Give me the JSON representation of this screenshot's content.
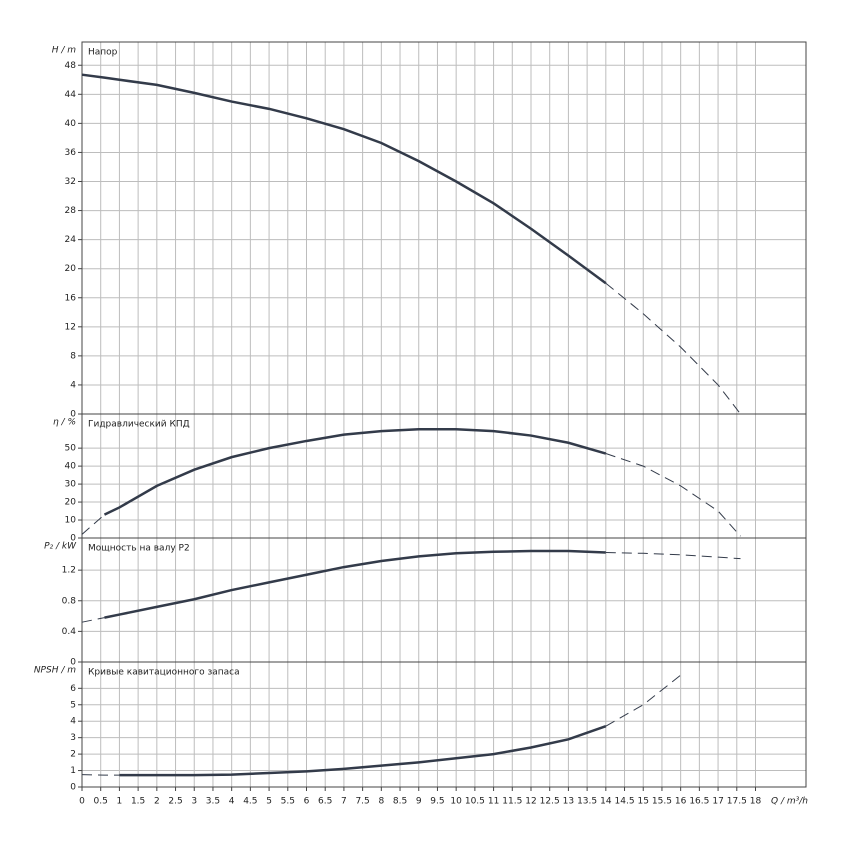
{
  "chart_data": [
    {
      "type": "line",
      "title": "Напор",
      "ylabel": "H / m",
      "x": [
        0,
        0.6,
        1,
        2,
        3,
        4,
        5,
        6,
        7,
        8,
        9,
        10,
        11,
        12,
        13,
        14,
        15,
        16,
        17,
        17.6
      ],
      "xlim": [
        0,
        19.35
      ],
      "ylim": [
        0,
        51.2
      ],
      "yticks": [
        0,
        4,
        8,
        12,
        16,
        20,
        24,
        28,
        32,
        36,
        40,
        44,
        48
      ],
      "grid": true,
      "series": [
        {
          "style": "solid",
          "color": "#333b4a",
          "values": [
            46.7,
            46.3,
            46.0,
            45.3,
            44.2,
            43.0,
            42.0,
            40.7,
            39.2,
            37.3,
            34.8,
            32.0,
            29.0,
            25.5,
            21.8,
            18.0,
            null,
            null,
            null,
            null
          ]
        },
        {
          "style": "dashed",
          "color": "#333b4a",
          "values": [
            null,
            null,
            null,
            null,
            null,
            null,
            null,
            null,
            null,
            null,
            null,
            null,
            null,
            null,
            null,
            18.0,
            13.8,
            9.2,
            4.0,
            0
          ]
        }
      ]
    },
    {
      "type": "line",
      "title": "Гидравлический КПД",
      "ylabel": "η / %",
      "x": [
        0,
        0.6,
        1,
        2,
        3,
        4,
        5,
        6,
        7,
        8,
        9,
        10,
        11,
        12,
        13,
        14,
        15,
        16,
        17,
        17.6
      ],
      "xlim": [
        0,
        19.35
      ],
      "ylim": [
        0,
        69
      ],
      "yticks": [
        0,
        10,
        20,
        30,
        40,
        50
      ],
      "grid": true,
      "series": [
        {
          "style": "solid",
          "color": "#333b4a",
          "values": [
            null,
            13,
            17,
            29,
            38,
            45,
            50,
            54,
            57.5,
            59.5,
            60.5,
            60.5,
            59.5,
            57,
            53,
            47,
            null,
            null,
            null,
            null
          ]
        },
        {
          "style": "dashed",
          "color": "#333b4a",
          "values": [
            2,
            13,
            null,
            null,
            null,
            null,
            null,
            null,
            null,
            null,
            null,
            null,
            null,
            null,
            null,
            47,
            40,
            29,
            15,
            1
          ]
        }
      ]
    },
    {
      "type": "line",
      "title": "Мощность на валу P2",
      "ylabel": "P₂ / kW",
      "x": [
        0,
        0.6,
        1,
        2,
        3,
        4,
        5,
        6,
        7,
        8,
        9,
        10,
        11,
        12,
        13,
        14,
        15,
        16,
        17,
        17.6
      ],
      "xlim": [
        0,
        19.35
      ],
      "ylim": [
        0,
        1.62
      ],
      "yticks": [
        0,
        0.4,
        0.8,
        1.2
      ],
      "grid": true,
      "series": [
        {
          "style": "solid",
          "color": "#333b4a",
          "values": [
            null,
            0.58,
            0.62,
            0.72,
            0.82,
            0.94,
            1.04,
            1.14,
            1.24,
            1.32,
            1.38,
            1.42,
            1.44,
            1.45,
            1.45,
            1.43,
            null,
            null,
            null,
            null
          ]
        },
        {
          "style": "dashed",
          "color": "#333b4a",
          "values": [
            0.52,
            0.58,
            null,
            null,
            null,
            null,
            null,
            null,
            null,
            null,
            null,
            null,
            null,
            null,
            null,
            1.43,
            1.42,
            1.4,
            1.37,
            1.35
          ]
        }
      ]
    },
    {
      "type": "line",
      "title": "Кривые кавитационного запаса",
      "ylabel": "NPSH / m",
      "xlabel": "Q / m³/h",
      "x": [
        0,
        0.6,
        1,
        2,
        3,
        4,
        5,
        6,
        7,
        8,
        9,
        10,
        11,
        12,
        13,
        14,
        15,
        16,
        17,
        17.6
      ],
      "xlim": [
        0,
        19.35
      ],
      "ylim": [
        0,
        7.6
      ],
      "yticks": [
        0,
        1,
        2,
        3,
        4,
        5,
        6
      ],
      "grid": true,
      "xticks": [
        0,
        0.5,
        1,
        1.5,
        2,
        2.5,
        3,
        3.5,
        4,
        4.5,
        5,
        5.5,
        6,
        6.5,
        7,
        7.5,
        8,
        8.5,
        9,
        9.5,
        10,
        10.5,
        11,
        11.5,
        12,
        12.5,
        13,
        13.5,
        14,
        14.5,
        15,
        15.5,
        16,
        16.5,
        17,
        17.5,
        18
      ],
      "series": [
        {
          "style": "solid",
          "color": "#333b4a",
          "values": [
            null,
            null,
            0.72,
            0.72,
            0.72,
            0.75,
            0.85,
            0.95,
            1.1,
            1.3,
            1.5,
            1.75,
            2.0,
            2.4,
            2.9,
            3.7,
            null,
            null,
            null,
            null
          ]
        },
        {
          "style": "dashed",
          "color": "#333b4a",
          "values": [
            0.75,
            0.72,
            0.72,
            null,
            null,
            null,
            null,
            null,
            null,
            null,
            null,
            null,
            null,
            null,
            null,
            3.7,
            5.0,
            6.8,
            null,
            null
          ]
        }
      ]
    }
  ]
}
